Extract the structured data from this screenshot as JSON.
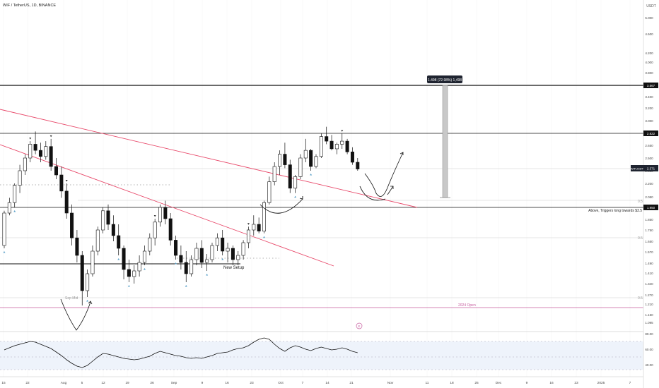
{
  "header": {
    "title": "WIF / TetherUS, 1D, BINANCE"
  },
  "currency": "USDT",
  "colors": {
    "background": "#ffffff",
    "candle_up": "#ffffff",
    "candle_down": "#111111",
    "candle_border": "#111111",
    "trendline": "#e8496a",
    "level_line": "#111111",
    "ruler_fill": "#c8c8c8",
    "rsi_line": "#111111",
    "rsi_band": "#eef3fb",
    "marker_blue": "#5aa0c8",
    "marker_dark": "#333333",
    "year_open": "#c65b9e"
  },
  "annotations": {
    "ruler_label": "1.498 (72.98%) 1,498",
    "trigger_note": "Above, Triggers long towards $3.5",
    "setup_label": "New Setup",
    "year_open_label": "2024 Open",
    "aug_low_label": "Sep Mid",
    "symbol_badge": "WIFUSDT",
    "symbol_price": "2.371",
    "price_3567": "3.567",
    "price_2822": "2.822",
    "price_1950": "1.950",
    "fib_05a": "0.5",
    "fib_05b": "0.5",
    "fib_05c": "0.5",
    "event_icon": "E"
  },
  "chart_data": {
    "type": "candlestick",
    "title": "WIF / TetherUS, 1D, BINANCE",
    "price_axis": [
      "5.000",
      "4.600",
      "4.200",
      "4.000",
      "3.800",
      "3.600",
      "3.400",
      "3.200",
      "3.000",
      "2.800",
      "2.650",
      "2.500",
      "2.350",
      "2.200",
      "2.050",
      "1.950",
      "1.850",
      "1.750",
      "1.650",
      "1.570",
      "1.490",
      "1.410",
      "1.340",
      "1.270",
      "1.210",
      "1.150",
      "1.095"
    ],
    "rsi_axis": [
      "80.00",
      "60.00",
      "40.00"
    ],
    "x_axis": [
      "15",
      "22",
      "Aug",
      "5",
      "12",
      "19",
      "26",
      "Sep",
      "9",
      "16",
      "23",
      "Oct",
      "7",
      "14",
      "21",
      "Nov",
      "11",
      "18",
      "25",
      "Dec",
      "9",
      "16",
      "23",
      "2025",
      "7"
    ],
    "levels": [
      3.567,
      2.822,
      1.95,
      1.49
    ],
    "year_open": 1.21,
    "last_price": 2.371,
    "candles": [
      [
        1.62,
        1.92,
        1.6,
        1.9
      ],
      [
        1.9,
        2.05,
        1.88,
        2.0
      ],
      [
        2.0,
        2.2,
        1.95,
        2.18
      ],
      [
        2.18,
        2.42,
        2.1,
        2.35
      ],
      [
        2.35,
        2.55,
        2.3,
        2.5
      ],
      [
        2.5,
        2.72,
        2.45,
        2.68
      ],
      [
        2.68,
        2.85,
        2.55,
        2.6
      ],
      [
        2.6,
        2.7,
        2.45,
        2.52
      ],
      [
        2.52,
        2.72,
        2.48,
        2.65
      ],
      [
        2.65,
        2.75,
        2.35,
        2.4
      ],
      [
        2.4,
        2.5,
        2.25,
        2.3
      ],
      [
        2.3,
        2.4,
        2.05,
        2.12
      ],
      [
        2.12,
        2.2,
        1.85,
        1.9
      ],
      [
        1.9,
        1.98,
        1.62,
        1.68
      ],
      [
        1.68,
        1.75,
        1.5,
        1.55
      ],
      [
        1.55,
        1.58,
        1.22,
        1.3
      ],
      [
        1.3,
        1.45,
        1.26,
        1.42
      ],
      [
        1.42,
        1.62,
        1.4,
        1.58
      ],
      [
        1.58,
        1.78,
        1.55,
        1.75
      ],
      [
        1.75,
        1.95,
        1.72,
        1.92
      ],
      [
        1.92,
        1.98,
        1.75,
        1.8
      ],
      [
        1.8,
        1.88,
        1.65,
        1.7
      ],
      [
        1.7,
        1.8,
        1.55,
        1.6
      ],
      [
        1.6,
        1.62,
        1.38,
        1.45
      ],
      [
        1.45,
        1.52,
        1.36,
        1.4
      ],
      [
        1.4,
        1.48,
        1.35,
        1.44
      ],
      [
        1.44,
        1.55,
        1.4,
        1.5
      ],
      [
        1.5,
        1.62,
        1.48,
        1.58
      ],
      [
        1.58,
        1.72,
        1.55,
        1.68
      ],
      [
        1.68,
        1.85,
        1.62,
        1.82
      ],
      [
        1.82,
        1.98,
        1.78,
        1.95
      ],
      [
        1.95,
        2.02,
        1.8,
        1.85
      ],
      [
        1.85,
        1.9,
        1.62,
        1.66
      ],
      [
        1.66,
        1.7,
        1.52,
        1.55
      ],
      [
        1.55,
        1.62,
        1.45,
        1.5
      ],
      [
        1.5,
        1.58,
        1.36,
        1.42
      ],
      [
        1.42,
        1.55,
        1.4,
        1.52
      ],
      [
        1.52,
        1.64,
        1.48,
        1.6
      ],
      [
        1.6,
        1.66,
        1.46,
        1.5
      ],
      [
        1.5,
        1.56,
        1.44,
        1.52
      ],
      [
        1.52,
        1.64,
        1.5,
        1.62
      ],
      [
        1.62,
        1.72,
        1.58,
        1.68
      ],
      [
        1.68,
        1.75,
        1.55,
        1.58
      ],
      [
        1.58,
        1.64,
        1.5,
        1.6
      ],
      [
        1.6,
        1.62,
        1.48,
        1.52
      ],
      [
        1.52,
        1.58,
        1.48,
        1.55
      ],
      [
        1.55,
        1.66,
        1.52,
        1.64
      ],
      [
        1.64,
        1.78,
        1.6,
        1.75
      ],
      [
        1.75,
        1.88,
        1.7,
        1.8
      ],
      [
        1.8,
        1.86,
        1.72,
        1.74
      ],
      [
        1.74,
        2.02,
        1.72,
        2.0
      ],
      [
        2.0,
        2.28,
        1.98,
        2.22
      ],
      [
        2.22,
        2.45,
        2.18,
        2.4
      ],
      [
        2.4,
        2.6,
        2.3,
        2.55
      ],
      [
        2.55,
        2.7,
        2.38,
        2.42
      ],
      [
        2.42,
        2.48,
        2.1,
        2.15
      ],
      [
        2.15,
        2.3,
        2.1,
        2.28
      ],
      [
        2.28,
        2.55,
        2.25,
        2.5
      ],
      [
        2.5,
        2.75,
        2.45,
        2.6
      ],
      [
        2.6,
        2.62,
        2.35,
        2.4
      ],
      [
        2.4,
        2.55,
        2.38,
        2.52
      ],
      [
        2.52,
        2.82,
        2.5,
        2.78
      ],
      [
        2.78,
        2.92,
        2.68,
        2.72
      ],
      [
        2.72,
        2.8,
        2.6,
        2.62
      ],
      [
        2.62,
        2.7,
        2.55,
        2.68
      ],
      [
        2.68,
        2.82,
        2.62,
        2.72
      ],
      [
        2.72,
        2.75,
        2.55,
        2.58
      ],
      [
        2.58,
        2.64,
        2.42,
        2.45
      ],
      [
        2.45,
        2.5,
        2.35,
        2.37
      ]
    ],
    "rsi": [
      58,
      61,
      64,
      66,
      68,
      70,
      69,
      66,
      63,
      60,
      55,
      50,
      44,
      39,
      35,
      33,
      36,
      42,
      48,
      53,
      52,
      50,
      48,
      46,
      45,
      44,
      45,
      47,
      49,
      53,
      56,
      54,
      52,
      50,
      49,
      47,
      46,
      47,
      46,
      48,
      50,
      53,
      54,
      55,
      58,
      60,
      61,
      64,
      69,
      73,
      75,
      73,
      66,
      60,
      56,
      61,
      64,
      62,
      59,
      57,
      60,
      62,
      60,
      58,
      59,
      61,
      59,
      56,
      54
    ],
    "projection": {
      "path_1": "curved down then up to 2.7",
      "path_2": "curved down to 2.05 then up to 2.25"
    }
  }
}
